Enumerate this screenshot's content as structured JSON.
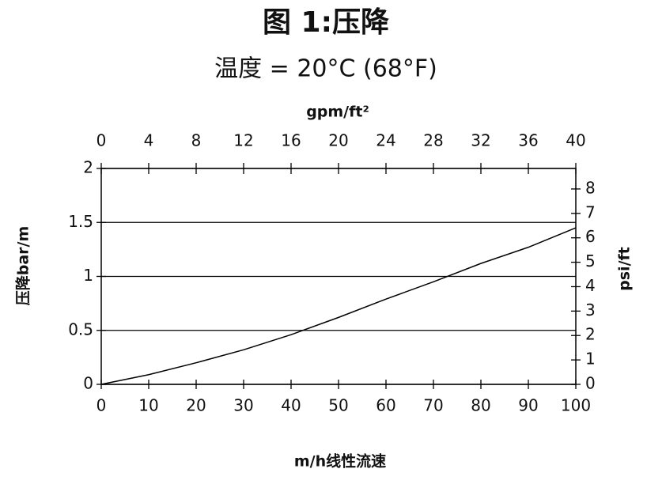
{
  "chart_data": {
    "type": "line",
    "title": "图 1:压降",
    "subtitle": "温度 = 20°C (68°F)",
    "xlabel": "m/h线性流速",
    "ylabel": "压降bar/m",
    "x2label": "gpm/ft²",
    "y2label": "psi/ft",
    "x": [
      0,
      10,
      20,
      30,
      40,
      50,
      60,
      70,
      80,
      90,
      100
    ],
    "series": [
      {
        "color": "#000000",
        "values": [
          0,
          0.09,
          0.2,
          0.32,
          0.46,
          0.62,
          0.79,
          0.95,
          1.12,
          1.27,
          1.45
        ]
      }
    ],
    "xlim": [
      0,
      100
    ],
    "xticks": [
      0,
      10,
      20,
      30,
      40,
      50,
      60,
      70,
      80,
      90,
      100
    ],
    "ylim": [
      0,
      2
    ],
    "yticks": [
      0,
      0.5,
      1,
      1.5,
      2
    ],
    "x2lim": [
      0,
      40
    ],
    "x2ticks": [
      0,
      4,
      8,
      12,
      16,
      20,
      24,
      28,
      32,
      36,
      40
    ],
    "y2lim": [
      0,
      8.84
    ],
    "y2ticks": [
      0,
      1,
      2,
      3,
      4,
      5,
      6,
      7,
      8
    ],
    "grid": true
  }
}
